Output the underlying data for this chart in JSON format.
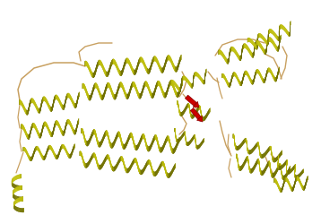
{
  "background_color": "#ffffff",
  "helix_color_light": "#d4d418",
  "helix_color_mid": "#b8b808",
  "helix_color_dark": "#888800",
  "helix_shadow": "#6a6a00",
  "beta_color": "#cc0000",
  "beta_color_dark": "#880000",
  "loop_color": "#c8a060",
  "figsize": [
    3.58,
    2.4
  ],
  "dpi": 100
}
